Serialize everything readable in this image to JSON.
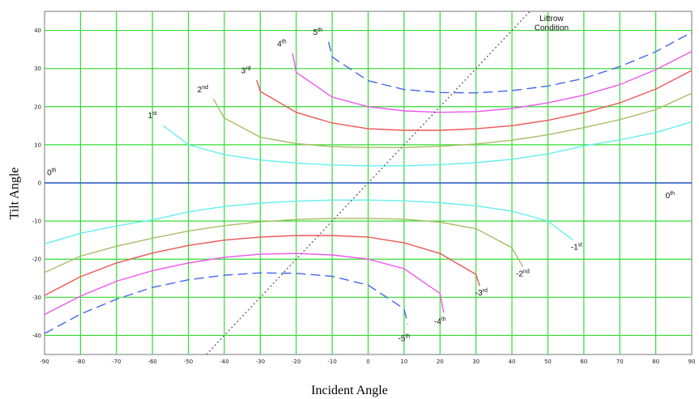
{
  "chart_data": {
    "type": "line",
    "xlabel": "Incident Angle",
    "ylabel": "Tilt Angle",
    "xlim": [
      -90,
      90
    ],
    "ylim": [
      -45,
      45
    ],
    "x_ticks": [
      -90,
      -80,
      -70,
      -60,
      -50,
      -40,
      -30,
      -20,
      -10,
      0,
      10,
      20,
      30,
      40,
      50,
      60,
      70,
      80,
      90
    ],
    "y_ticks": [
      -40,
      -30,
      -20,
      -10,
      0,
      10,
      20,
      30,
      40
    ],
    "grid": true,
    "grid_color": "#33dd33",
    "series": [
      {
        "name": "0th",
        "color": "#3355cc",
        "dash": "solid",
        "x": [
          -90,
          90
        ],
        "y": [
          0,
          0
        ]
      },
      {
        "name": "1st",
        "color": "#66eeee",
        "dash": "solid",
        "x": [
          -57,
          -50,
          -40,
          -30,
          -20,
          -10,
          0,
          10,
          20,
          30,
          40,
          50,
          60,
          70,
          80,
          90
        ],
        "y": [
          15,
          10,
          7.4,
          6,
          5.2,
          4.7,
          4.5,
          4.5,
          4.8,
          5.3,
          6.2,
          7.6,
          9.7,
          11.3,
          13.2,
          16
        ]
      },
      {
        "name": "2nd",
        "color": "#aabb66",
        "dash": "solid",
        "x": [
          -43,
          -40,
          -30,
          -20,
          -10,
          0,
          10,
          20,
          30,
          40,
          50,
          60,
          70,
          80,
          90
        ],
        "y": [
          22,
          17,
          12,
          10.3,
          9.5,
          9.3,
          9.3,
          9.6,
          10.2,
          11.2,
          12.6,
          14.5,
          16.6,
          19.2,
          23.5
        ]
      },
      {
        "name": "3rd",
        "color": "#ee5555",
        "dash": "solid",
        "x": [
          -31,
          -30,
          -20,
          -10,
          0,
          10,
          20,
          30,
          40,
          50,
          60,
          70,
          80,
          90
        ],
        "y": [
          27,
          24,
          18.5,
          15.7,
          14.2,
          13.8,
          13.8,
          14.2,
          15,
          16.4,
          18.4,
          21,
          24.6,
          29.5
        ]
      },
      {
        "name": "4th",
        "color": "#ee55ee",
        "dash": "solid",
        "x": [
          -21,
          -20,
          -10,
          0,
          10,
          20,
          30,
          40,
          50,
          60,
          70,
          80,
          90
        ],
        "y": [
          34,
          29,
          22.5,
          20,
          18.9,
          18.5,
          18.7,
          19.5,
          21,
          23,
          25.8,
          29.7,
          34.5
        ]
      },
      {
        "name": "5th",
        "color": "#4466ee",
        "dash": "dashed",
        "x": [
          -11,
          -10,
          0,
          10,
          20,
          30,
          40,
          50,
          60,
          70,
          80,
          90
        ],
        "y": [
          37,
          33,
          26.8,
          24.5,
          23.7,
          23.6,
          24.2,
          25.4,
          27.4,
          30.5,
          34.4,
          39.5
        ]
      },
      {
        "name": "-1st",
        "color": "#66eeee",
        "dash": "solid",
        "x": [
          -90,
          -80,
          -70,
          -60,
          -50,
          -40,
          -30,
          -20,
          -10,
          0,
          10,
          20,
          30,
          40,
          50,
          57
        ],
        "y": [
          -16,
          -13.2,
          -11.3,
          -9.7,
          -7.6,
          -6.2,
          -5.3,
          -4.8,
          -4.5,
          -4.5,
          -4.7,
          -5.2,
          -6,
          -7.4,
          -10,
          -15
        ]
      },
      {
        "name": "-2nd",
        "color": "#aabb66",
        "dash": "solid",
        "x": [
          -90,
          -80,
          -70,
          -60,
          -50,
          -40,
          -30,
          -20,
          -10,
          0,
          10,
          20,
          30,
          40,
          43
        ],
        "y": [
          -23.5,
          -19.2,
          -16.6,
          -14.5,
          -12.6,
          -11.2,
          -10.2,
          -9.6,
          -9.3,
          -9.3,
          -9.5,
          -10.3,
          -12,
          -17,
          -22
        ]
      },
      {
        "name": "-3rd",
        "color": "#ee5555",
        "dash": "solid",
        "x": [
          -90,
          -80,
          -70,
          -60,
          -50,
          -40,
          -30,
          -20,
          -10,
          0,
          10,
          20,
          30,
          31
        ],
        "y": [
          -29.5,
          -24.6,
          -21,
          -18.4,
          -16.4,
          -15,
          -14.2,
          -13.8,
          -13.8,
          -14.2,
          -15.7,
          -18.5,
          -24,
          -27
        ]
      },
      {
        "name": "-4th",
        "color": "#ee55ee",
        "dash": "solid",
        "x": [
          -90,
          -80,
          -70,
          -60,
          -50,
          -40,
          -30,
          -20,
          -10,
          0,
          10,
          20,
          21
        ],
        "y": [
          -34.5,
          -29.7,
          -25.8,
          -23,
          -21,
          -19.5,
          -18.7,
          -18.5,
          -18.9,
          -20,
          -22.5,
          -29,
          -34
        ]
      },
      {
        "name": "-5th",
        "color": "#4466ee",
        "dash": "dashed",
        "x": [
          -90,
          -80,
          -70,
          -60,
          -50,
          -40,
          -30,
          -20,
          -10,
          0,
          10,
          11
        ],
        "y": [
          -39.5,
          -34.4,
          -30.5,
          -27.4,
          -25.4,
          -24.2,
          -23.6,
          -23.7,
          -24.5,
          -26.8,
          -33,
          -37
        ]
      },
      {
        "name": "Littrow Condition",
        "color": "#666666",
        "dash": "dotted",
        "x": [
          -45,
          45
        ],
        "y": [
          -45,
          45
        ]
      }
    ],
    "annotations": [
      {
        "base": "0",
        "sup": "th",
        "x": -88,
        "y": 2
      },
      {
        "base": "0",
        "sup": "th",
        "x": 84,
        "y": -4
      },
      {
        "base": "1",
        "sup": "st",
        "x": -60,
        "y": 17
      },
      {
        "base": "2",
        "sup": "nd",
        "x": -46,
        "y": 23.8
      },
      {
        "base": "3",
        "sup": "rd",
        "x": -34,
        "y": 28.8
      },
      {
        "base": "4",
        "sup": "th",
        "x": -24,
        "y": 35.8
      },
      {
        "base": "5",
        "sup": "th",
        "x": -14,
        "y": 38.8
      },
      {
        "base": "-1",
        "sup": "st",
        "x": 58,
        "y": -17.5
      },
      {
        "base": "-2",
        "sup": "nd",
        "x": 43,
        "y": -24.5
      },
      {
        "base": "-3",
        "sup": "rd",
        "x": 31.5,
        "y": -29.5
      },
      {
        "base": "-4",
        "sup": "th",
        "x": 20,
        "y": -37
      },
      {
        "base": "-5",
        "sup": "th",
        "x": 10,
        "y": -41.5
      },
      {
        "base": "Littrow",
        "sup": "",
        "x": 51,
        "y": 42.5
      },
      {
        "base": "Condition",
        "sup": "",
        "x": 51,
        "y": 40
      }
    ]
  }
}
